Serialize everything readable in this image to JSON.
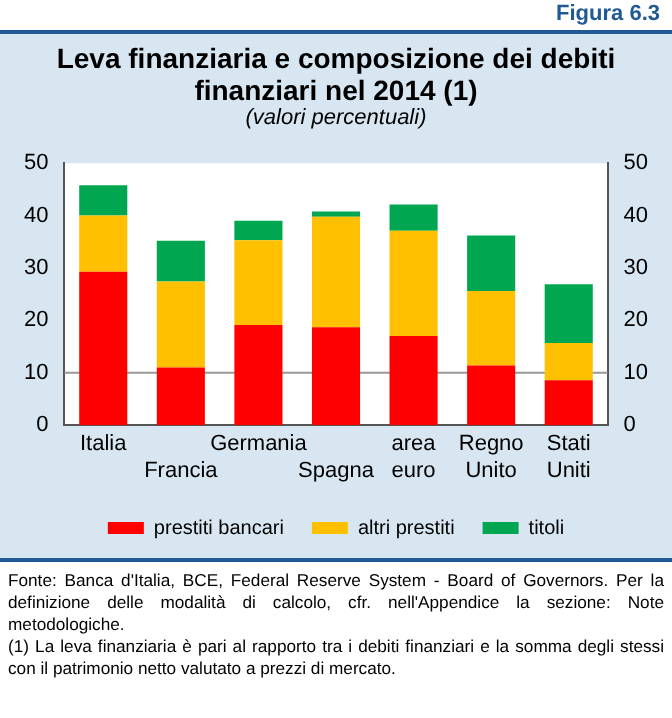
{
  "chart_data": {
    "type": "bar",
    "stacked": true,
    "title": "Leva finanziaria e composizione dei debiti finanziari nel 2014 (1)",
    "subtitle": "(valori percentuali)",
    "categories": [
      "Italia",
      "Francia",
      "Germania",
      "Spagna",
      "area euro",
      "Regno Unito",
      "Stati Uniti"
    ],
    "series": [
      {
        "name": "prestiti bancari",
        "color": "#ff0000",
        "values": [
          29.3,
          11,
          19.1,
          18.7,
          17,
          11.4,
          8.6
        ]
      },
      {
        "name": "altri prestiti",
        "color": "#ffc000",
        "values": [
          10.7,
          16.4,
          16.2,
          21.1,
          20.1,
          14.2,
          7.1
        ]
      },
      {
        "name": "titoli",
        "color": "#00a650",
        "values": [
          5.8,
          7.8,
          3.7,
          1,
          5,
          10.6,
          11.2
        ]
      }
    ],
    "ylim": [
      0,
      50
    ],
    "yticks": [
      0,
      10,
      20,
      30,
      40,
      50
    ],
    "y2lim": [
      0,
      50
    ],
    "y2ticks": [
      0,
      10,
      20,
      30,
      40,
      50
    ],
    "grid": false,
    "legend": "bottom",
    "ref_lines": [
      {
        "axis": "y",
        "value": 10,
        "color": "#999999"
      }
    ],
    "annotations": [
      "Figura 6.3",
      "Fonte: Banca d'Italia, BCE, Federal Reserve System - Board of Governors. Per la definizione delle modalità di calcolo, cfr. nell'Appendice la sezione: Note metodologiche.",
      "(1) La leva finanziaria è pari al rapporto tra i debiti finanziari e la somma degli stessi con il patrimonio netto valutato a prezzi di mercato."
    ]
  }
}
